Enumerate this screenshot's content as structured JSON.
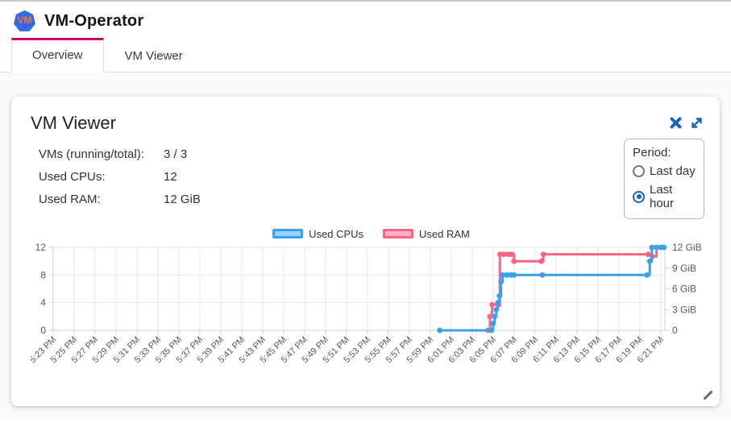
{
  "header": {
    "app_title": "VM-Operator",
    "logo_text": "VM"
  },
  "tabs": [
    {
      "label": "Overview",
      "active": true
    },
    {
      "label": "VM Viewer",
      "active": false
    }
  ],
  "panel": {
    "title": "VM Viewer",
    "stats": [
      {
        "label": "VMs (running/total):",
        "value": "3 / 3"
      },
      {
        "label": "Used CPUs:",
        "value": "12"
      },
      {
        "label": "Used RAM:",
        "value": "12 GiB"
      }
    ],
    "period": {
      "label": "Period:",
      "options": [
        {
          "label": "Last day",
          "selected": false
        },
        {
          "label": "Last hour",
          "selected": true
        }
      ]
    }
  },
  "colors": {
    "tab_indicator": "#cc0066",
    "icon_blue": "#1565c0",
    "grid": "#e7e7e7",
    "axis": "#cfcfcf",
    "tick_text": "#595959"
  },
  "chart_data": {
    "type": "line",
    "stepped": true,
    "legend_position": "top",
    "x_unit": "minutes after 5:23 PM",
    "x_axis_max_minutes": 58.4,
    "x_tick_interval_minutes": 2,
    "x_tick_labels": [
      "5:23 PM",
      "5:25 PM",
      "5:27 PM",
      "5:29 PM",
      "5:31 PM",
      "5:33 PM",
      "5:35 PM",
      "5:37 PM",
      "5:39 PM",
      "5:41 PM",
      "5:43 PM",
      "5:45 PM",
      "5:47 PM",
      "5:49 PM",
      "5:51 PM",
      "5:53 PM",
      "5:55 PM",
      "5:57 PM",
      "5:59 PM",
      "6:01 PM",
      "6:03 PM",
      "6:05 PM",
      "6:07 PM",
      "6:09 PM",
      "6:11 PM",
      "6:13 PM",
      "6:15 PM",
      "6:17 PM",
      "6:19 PM",
      "6:21 PM"
    ],
    "y_left": {
      "tick_labels": [
        "12",
        "8",
        "4",
        "0"
      ],
      "tick_values": [
        12,
        8,
        4,
        0
      ],
      "max": 12
    },
    "y_right": {
      "tick_labels": [
        "12 GiB",
        "9 GiB",
        "6 GiB",
        "3 GiB",
        "0"
      ],
      "tick_values": [
        12,
        9,
        6,
        3,
        0
      ],
      "max": 12
    },
    "series": [
      {
        "name": "Used CPUs",
        "color": "#36A2EB",
        "fill": "#9BD0F5",
        "axis": "left",
        "points": [
          [
            36.9,
            0
          ],
          [
            41.8,
            0
          ],
          [
            42.0,
            1
          ],
          [
            42.15,
            2
          ],
          [
            42.3,
            3
          ],
          [
            42.45,
            4
          ],
          [
            42.6,
            5
          ],
          [
            42.75,
            7
          ],
          [
            42.9,
            8
          ],
          [
            43.3,
            8
          ],
          [
            43.7,
            8
          ],
          [
            44.0,
            8
          ],
          [
            46.7,
            8
          ],
          [
            56.7,
            8
          ],
          [
            56.95,
            10
          ],
          [
            57.15,
            12
          ],
          [
            57.6,
            12
          ],
          [
            58.0,
            12
          ],
          [
            58.3,
            12
          ]
        ]
      },
      {
        "name": "Used RAM",
        "color": "#FF6384",
        "fill": "#FFB1C1",
        "axis": "right",
        "points": [
          [
            36.9,
            0
          ],
          [
            41.5,
            0
          ],
          [
            41.7,
            2
          ],
          [
            41.9,
            3.7
          ],
          [
            42.5,
            3.7
          ],
          [
            42.65,
            11
          ],
          [
            43.0,
            11
          ],
          [
            43.4,
            11
          ],
          [
            43.75,
            11
          ],
          [
            44.0,
            10
          ],
          [
            46.6,
            10
          ],
          [
            46.8,
            11
          ],
          [
            56.8,
            11
          ],
          [
            57.2,
            10.7
          ],
          [
            57.6,
            12
          ],
          [
            58.3,
            12
          ]
        ]
      }
    ]
  }
}
